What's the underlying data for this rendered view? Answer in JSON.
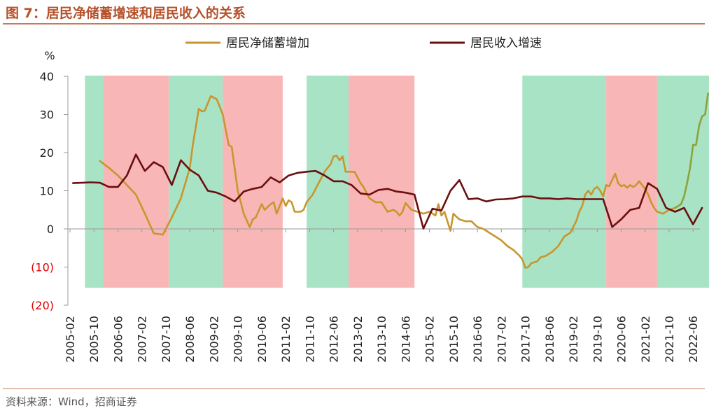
{
  "header": {
    "title": "图 7：居民净储蓄增速和居民收入的关系"
  },
  "footer": {
    "source": "资料来源：Wind，招商证券"
  },
  "chart_data": {
    "type": "line",
    "title": "图 7：居民净储蓄增速和居民收入的关系",
    "ylabel": "%",
    "ylim": [
      -20,
      40
    ],
    "yticks": [
      40,
      30,
      20,
      10,
      0,
      -10,
      -20
    ],
    "ytick_labels": [
      "40",
      "30",
      "20",
      "10",
      "0",
      "(10)",
      "(20)"
    ],
    "negative_label_color": "#e00000",
    "grid": false,
    "legend_position": "top",
    "xticks": [
      "2005-02",
      "2005-10",
      "2006-06",
      "2007-02",
      "2007-10",
      "2008-06",
      "2009-02",
      "2009-10",
      "2010-06",
      "2011-02",
      "2011-10",
      "2012-06",
      "2013-02",
      "2013-10",
      "2014-06",
      "2015-02",
      "2015-10",
      "2016-06",
      "2017-02",
      "2017-10",
      "2018-06",
      "2019-02",
      "2019-10",
      "2020-06",
      "2021-02",
      "2021-10",
      "2022-06"
    ],
    "shaded_periods": [
      {
        "start": "2005-07",
        "end": "2006-01",
        "color": "green"
      },
      {
        "start": "2006-01",
        "end": "2007-11",
        "color": "red"
      },
      {
        "start": "2007-11",
        "end": "2009-05",
        "color": "green"
      },
      {
        "start": "2009-05",
        "end": "2011-01",
        "color": "red"
      },
      {
        "start": "2011-09",
        "end": "2012-11",
        "color": "green"
      },
      {
        "start": "2012-11",
        "end": "2014-09",
        "color": "red"
      },
      {
        "start": "2017-09",
        "end": "2020-01",
        "color": "green"
      },
      {
        "start": "2020-01",
        "end": "2021-06",
        "color": "red"
      },
      {
        "start": "2021-06",
        "end": "2023-02",
        "color": "green"
      }
    ],
    "series": [
      {
        "name": "居民净储蓄增加",
        "color": "#c8962e",
        "points": [
          [
            "2005-12",
            17.8
          ],
          [
            "2006-03",
            16
          ],
          [
            "2006-06",
            14
          ],
          [
            "2006-09",
            11.5
          ],
          [
            "2006-12",
            9
          ],
          [
            "2007-03",
            4
          ],
          [
            "2007-06",
            -1.2
          ],
          [
            "2007-09",
            -1.5
          ],
          [
            "2007-12",
            3
          ],
          [
            "2008-03",
            8
          ],
          [
            "2008-06",
            16
          ],
          [
            "2008-07",
            22
          ],
          [
            "2008-09",
            31.5
          ],
          [
            "2008-10",
            30.8
          ],
          [
            "2008-11",
            31
          ],
          [
            "2009-01",
            34.8
          ],
          [
            "2009-03",
            34
          ],
          [
            "2009-05",
            30
          ],
          [
            "2009-07",
            22
          ],
          [
            "2009-08",
            21.5
          ],
          [
            "2009-10",
            10
          ],
          [
            "2009-12",
            4
          ],
          [
            "2010-02",
            0.5
          ],
          [
            "2010-03",
            2.5
          ],
          [
            "2010-04",
            3
          ],
          [
            "2010-06",
            6.5
          ],
          [
            "2010-07",
            5
          ],
          [
            "2010-09",
            6.5
          ],
          [
            "2010-10",
            7
          ],
          [
            "2010-11",
            4
          ],
          [
            "2011-01",
            8
          ],
          [
            "2011-02",
            6
          ],
          [
            "2011-03",
            7.5
          ],
          [
            "2011-04",
            7
          ],
          [
            "2011-05",
            4.5
          ],
          [
            "2011-07",
            4.5
          ],
          [
            "2011-08",
            5
          ],
          [
            "2011-09",
            7
          ],
          [
            "2011-10",
            8
          ],
          [
            "2011-11",
            9
          ],
          [
            "2012-01",
            12
          ],
          [
            "2012-03",
            15
          ],
          [
            "2012-05",
            17
          ],
          [
            "2012-06",
            19
          ],
          [
            "2012-07",
            19.2
          ],
          [
            "2012-08",
            18
          ],
          [
            "2012-09",
            19
          ],
          [
            "2012-10",
            15
          ],
          [
            "2013-01",
            15
          ],
          [
            "2013-03",
            12
          ],
          [
            "2013-04",
            11
          ],
          [
            "2013-06",
            8
          ],
          [
            "2013-08",
            7
          ],
          [
            "2013-10",
            7
          ],
          [
            "2013-12",
            4.5
          ],
          [
            "2014-02",
            5
          ],
          [
            "2014-03",
            4.5
          ],
          [
            "2014-04",
            3.5
          ],
          [
            "2014-05",
            4.5
          ],
          [
            "2014-06",
            6.8
          ],
          [
            "2014-08",
            5
          ],
          [
            "2014-10",
            4.5
          ],
          [
            "2014-12",
            4
          ],
          [
            "2015-02",
            4.5
          ],
          [
            "2015-04",
            3.5
          ],
          [
            "2015-05",
            6.5
          ],
          [
            "2015-06",
            3.5
          ],
          [
            "2015-07",
            4.5
          ],
          [
            "2015-08",
            2
          ],
          [
            "2015-09",
            -0.5
          ],
          [
            "2015-10",
            4
          ],
          [
            "2015-11",
            3.2
          ],
          [
            "2015-12",
            2.5
          ],
          [
            "2016-02",
            2
          ],
          [
            "2016-04",
            2
          ],
          [
            "2016-06",
            0.5
          ],
          [
            "2016-08",
            0
          ],
          [
            "2016-10",
            -1
          ],
          [
            "2016-12",
            -2
          ],
          [
            "2017-02",
            -3
          ],
          [
            "2017-04",
            -4.5
          ],
          [
            "2017-06",
            -5.5
          ],
          [
            "2017-08",
            -7
          ],
          [
            "2017-09",
            -8
          ],
          [
            "2017-10",
            -10.2
          ],
          [
            "2017-11",
            -10
          ],
          [
            "2017-12",
            -9
          ],
          [
            "2018-02",
            -8.5
          ],
          [
            "2018-03",
            -7.5
          ],
          [
            "2018-05",
            -7
          ],
          [
            "2018-07",
            -6
          ],
          [
            "2018-09",
            -4.5
          ],
          [
            "2018-11",
            -2
          ],
          [
            "2019-01",
            -1
          ],
          [
            "2019-02",
            0.5
          ],
          [
            "2019-03",
            2
          ],
          [
            "2019-04",
            4.5
          ],
          [
            "2019-05",
            6
          ],
          [
            "2019-06",
            9
          ],
          [
            "2019-07",
            10
          ],
          [
            "2019-08",
            9
          ],
          [
            "2019-09",
            10.5
          ],
          [
            "2019-10",
            11
          ],
          [
            "2019-11",
            10
          ],
          [
            "2019-12",
            8.5
          ],
          [
            "2020-01",
            11.5
          ],
          [
            "2020-02",
            11.2
          ],
          [
            "2020-04",
            14.5
          ],
          [
            "2020-05",
            12
          ],
          [
            "2020-06",
            11.2
          ],
          [
            "2020-07",
            11.5
          ],
          [
            "2020-08",
            10.8
          ],
          [
            "2020-09",
            11.5
          ],
          [
            "2020-10",
            11
          ],
          [
            "2020-11",
            11.5
          ],
          [
            "2020-12",
            12.5
          ],
          [
            "2021-01",
            11.5
          ],
          [
            "2021-02",
            10.5
          ],
          [
            "2021-03",
            9
          ],
          [
            "2021-04",
            7
          ],
          [
            "2021-05",
            5.5
          ],
          [
            "2021-06",
            4.5
          ],
          [
            "2021-08",
            4
          ],
          [
            "2021-10",
            5
          ],
          [
            "2021-12",
            5.5
          ]
        ]
      },
      {
        "name": "居民收入增速",
        "color": "#6b0f0f",
        "points": [
          [
            "2005-03",
            12
          ],
          [
            "2005-06",
            12.1
          ],
          [
            "2005-09",
            12.2
          ],
          [
            "2005-12",
            12.1
          ],
          [
            "2006-03",
            11
          ],
          [
            "2006-06",
            11
          ],
          [
            "2006-09",
            14
          ],
          [
            "2006-12",
            19.5
          ],
          [
            "2007-03",
            15.2
          ],
          [
            "2007-06",
            17.5
          ],
          [
            "2007-09",
            16.2
          ],
          [
            "2007-12",
            11.5
          ],
          [
            "2008-03",
            18
          ],
          [
            "2008-06",
            15.5
          ],
          [
            "2008-09",
            14
          ],
          [
            "2008-12",
            10
          ],
          [
            "2009-03",
            9.5
          ],
          [
            "2009-06",
            8.5
          ],
          [
            "2009-09",
            7.2
          ],
          [
            "2009-12",
            9.8
          ],
          [
            "2010-03",
            10.5
          ],
          [
            "2010-06",
            11
          ],
          [
            "2010-09",
            13.5
          ],
          [
            "2010-12",
            12.2
          ],
          [
            "2011-03",
            14
          ],
          [
            "2011-06",
            14.7
          ],
          [
            "2011-09",
            15
          ],
          [
            "2011-12",
            15.2
          ],
          [
            "2012-03",
            14
          ],
          [
            "2012-06",
            12.5
          ],
          [
            "2012-09",
            12.5
          ],
          [
            "2012-12",
            11.5
          ],
          [
            "2013-03",
            9.3
          ],
          [
            "2013-06",
            9
          ],
          [
            "2013-09",
            10.2
          ],
          [
            "2013-12",
            10.5
          ],
          [
            "2014-03",
            9.8
          ],
          [
            "2014-06",
            9.5
          ],
          [
            "2014-09",
            9
          ],
          [
            "2014-12",
            0.1
          ],
          [
            "2015-03",
            5.3
          ],
          [
            "2015-06",
            4.8
          ],
          [
            "2015-09",
            10
          ],
          [
            "2015-12",
            12.8
          ],
          [
            "2016-03",
            7.8
          ],
          [
            "2016-06",
            8
          ],
          [
            "2016-09",
            7.2
          ],
          [
            "2016-12",
            7.7
          ],
          [
            "2017-03",
            7.8
          ],
          [
            "2017-06",
            8
          ],
          [
            "2017-09",
            8.5
          ],
          [
            "2017-12",
            8.5
          ],
          [
            "2018-03",
            8
          ],
          [
            "2018-06",
            8
          ],
          [
            "2018-09",
            7.8
          ],
          [
            "2018-12",
            8
          ],
          [
            "2019-03",
            7.8
          ],
          [
            "2019-06",
            7.8
          ],
          [
            "2019-09",
            7.8
          ],
          [
            "2019-12",
            7.8
          ],
          [
            "2020-03",
            0.5
          ],
          [
            "2020-06",
            2.5
          ],
          [
            "2020-09",
            5
          ],
          [
            "2020-12",
            5.5
          ],
          [
            "2021-03",
            12
          ],
          [
            "2021-06",
            10.5
          ],
          [
            "2021-09",
            5.5
          ],
          [
            "2021-12",
            4.5
          ],
          [
            "2022-03",
            5.5
          ],
          [
            "2022-06",
            1.2
          ],
          [
            "2022-09",
            5.5
          ]
        ]
      },
      {
        "name": "",
        "color": "#8ca33a",
        "points": [
          [
            "2021-12",
            5.5
          ],
          [
            "2022-02",
            6.5
          ],
          [
            "2022-03",
            8.5
          ],
          [
            "2022-04",
            12
          ],
          [
            "2022-05",
            16
          ],
          [
            "2022-06",
            22
          ],
          [
            "2022-07",
            22
          ],
          [
            "2022-08",
            27
          ],
          [
            "2022-09",
            29.5
          ],
          [
            "2022-10",
            30
          ],
          [
            "2022-11",
            35.5
          ]
        ]
      }
    ]
  }
}
